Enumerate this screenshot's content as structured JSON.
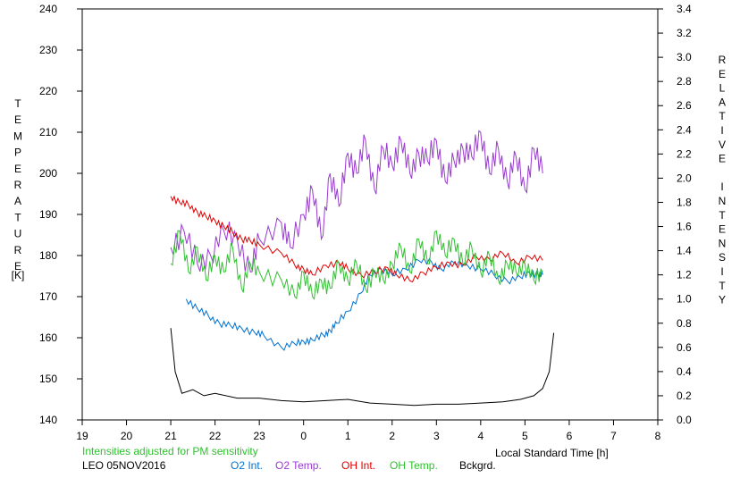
{
  "chart_data": {
    "type": "line",
    "station": "LEO 05NOV2016",
    "note": "Intensities adjusted for PM sensitivity",
    "xlabel": "Local Standard Time [h]",
    "ylabel_left_letters": [
      "T",
      "E",
      "M",
      "P",
      "E",
      "R",
      "A",
      "T",
      "U",
      "R",
      "E"
    ],
    "ylabel_left_unit": "[K]",
    "ylabel_right_letters": [
      "R",
      "E",
      "L",
      "A",
      "T",
      "I",
      "V",
      "E",
      "",
      "I",
      "N",
      "T",
      "E",
      "N",
      "S",
      "I",
      "T",
      "Y"
    ],
    "x_range": [
      19,
      32
    ],
    "x_tick_labels": [
      "19",
      "20",
      "21",
      "22",
      "23",
      "0",
      "1",
      "2",
      "3",
      "4",
      "5",
      "6",
      "7",
      "8"
    ],
    "y_left_range": [
      140,
      240
    ],
    "y_left_ticks": [
      140,
      150,
      160,
      170,
      180,
      190,
      200,
      210,
      220,
      230,
      240
    ],
    "y_right_range": [
      0.0,
      3.4
    ],
    "y_right_ticks": [
      "0.0",
      "0.2",
      "0.4",
      "0.6",
      "0.8",
      "1.0",
      "1.2",
      "1.4",
      "1.6",
      "1.8",
      "2.0",
      "2.2",
      "2.4",
      "2.6",
      "2.8",
      "3.0",
      "3.2",
      "3.4"
    ],
    "grid": false,
    "series": [
      {
        "name": "O2 Int.",
        "color": "#0070d0",
        "axis": "right",
        "x": [
          21.35,
          21.6,
          21.85,
          22.1,
          22.35,
          22.6,
          22.9,
          23.1,
          23.5,
          23.8,
          24.0,
          24.2,
          24.45,
          24.6,
          24.75,
          25.0,
          25.3,
          25.5,
          25.75,
          26.0,
          26.3,
          26.6,
          26.9,
          27.1,
          27.4,
          27.7,
          28.0,
          28.3,
          28.6,
          28.9,
          29.1,
          29.3,
          29.4
        ],
        "y": [
          1.0,
          0.92,
          0.86,
          0.8,
          0.78,
          0.76,
          0.72,
          0.7,
          0.6,
          0.63,
          0.65,
          0.66,
          0.7,
          0.74,
          0.8,
          0.9,
          1.05,
          1.2,
          1.25,
          1.2,
          1.25,
          1.32,
          1.3,
          1.25,
          1.3,
          1.28,
          1.25,
          1.2,
          1.15,
          1.18,
          1.22,
          1.2,
          1.2
        ]
      },
      {
        "name": "O2 Temp.",
        "color": "#9a3ad0",
        "axis": "left",
        "x": [
          21.0,
          21.3,
          21.6,
          21.9,
          22.2,
          22.5,
          22.8,
          23.0,
          23.5,
          23.7,
          24.0,
          24.2,
          24.4,
          24.6,
          24.8,
          25.0,
          25.2,
          25.4,
          25.6,
          25.8,
          26.0,
          26.2,
          26.4,
          26.6,
          26.8,
          27.0,
          27.2,
          27.4,
          27.6,
          27.8,
          28.0,
          28.2,
          28.4,
          28.6,
          28.8,
          29.0,
          29.2,
          29.4
        ],
        "y": [
          182,
          186,
          178,
          180,
          186,
          184,
          176,
          184,
          188,
          182,
          190,
          196,
          184,
          200,
          192,
          205,
          200,
          208,
          196,
          206,
          202,
          208,
          200,
          205,
          203,
          208,
          198,
          203,
          206,
          204,
          210,
          200,
          206,
          198,
          204,
          196,
          206,
          200
        ]
      },
      {
        "name": "OH Int.",
        "color": "#e00000",
        "axis": "right",
        "x": [
          21.0,
          21.2,
          21.4,
          21.6,
          21.8,
          22.0,
          22.2,
          22.4,
          22.6,
          22.8,
          23.0,
          23.5,
          23.8,
          24.0,
          24.2,
          24.5,
          24.8,
          25.0,
          25.3,
          25.6,
          25.9,
          26.1,
          26.4,
          26.7,
          27.0,
          27.3,
          27.6,
          27.9,
          28.2,
          28.5,
          28.8,
          29.1,
          29.4
        ],
        "y": [
          1.85,
          1.8,
          1.78,
          1.72,
          1.68,
          1.65,
          1.6,
          1.55,
          1.5,
          1.48,
          1.45,
          1.38,
          1.28,
          1.25,
          1.2,
          1.28,
          1.3,
          1.25,
          1.2,
          1.22,
          1.26,
          1.2,
          1.15,
          1.22,
          1.26,
          1.3,
          1.28,
          1.35,
          1.33,
          1.38,
          1.3,
          1.35,
          1.32
        ]
      },
      {
        "name": "OH Temp.",
        "color": "#30c030",
        "axis": "left",
        "x": [
          21.0,
          21.2,
          21.4,
          21.6,
          21.8,
          22.0,
          22.2,
          22.4,
          22.6,
          22.8,
          23.0,
          23.5,
          23.8,
          24.0,
          24.2,
          24.4,
          24.6,
          24.8,
          25.0,
          25.2,
          25.4,
          25.6,
          25.8,
          26.0,
          26.2,
          26.4,
          26.6,
          26.8,
          27.0,
          27.2,
          27.4,
          27.6,
          27.8,
          28.0,
          28.2,
          28.4,
          28.6,
          28.8,
          29.0,
          29.2,
          29.4
        ],
        "y": [
          178,
          186,
          176,
          182,
          174,
          180,
          176,
          182,
          172,
          178,
          176,
          174,
          170,
          176,
          170,
          174,
          172,
          178,
          174,
          178,
          172,
          176,
          174,
          178,
          182,
          176,
          184,
          178,
          186,
          180,
          184,
          178,
          182,
          176,
          180,
          174,
          178,
          176,
          178,
          174,
          176
        ]
      },
      {
        "name": "Bckgrd.",
        "color": "#000000",
        "axis": "right",
        "x": [
          21.0,
          21.1,
          21.25,
          21.5,
          21.75,
          22.0,
          22.5,
          23.0,
          23.5,
          24.0,
          24.5,
          25.0,
          25.5,
          26.0,
          26.5,
          27.0,
          27.5,
          28.0,
          28.5,
          28.9,
          29.2,
          29.4,
          29.55,
          29.65
        ],
        "y": [
          0.76,
          0.4,
          0.22,
          0.25,
          0.2,
          0.22,
          0.18,
          0.18,
          0.16,
          0.15,
          0.16,
          0.17,
          0.14,
          0.13,
          0.12,
          0.13,
          0.13,
          0.14,
          0.15,
          0.17,
          0.2,
          0.26,
          0.4,
          0.72
        ]
      }
    ]
  }
}
